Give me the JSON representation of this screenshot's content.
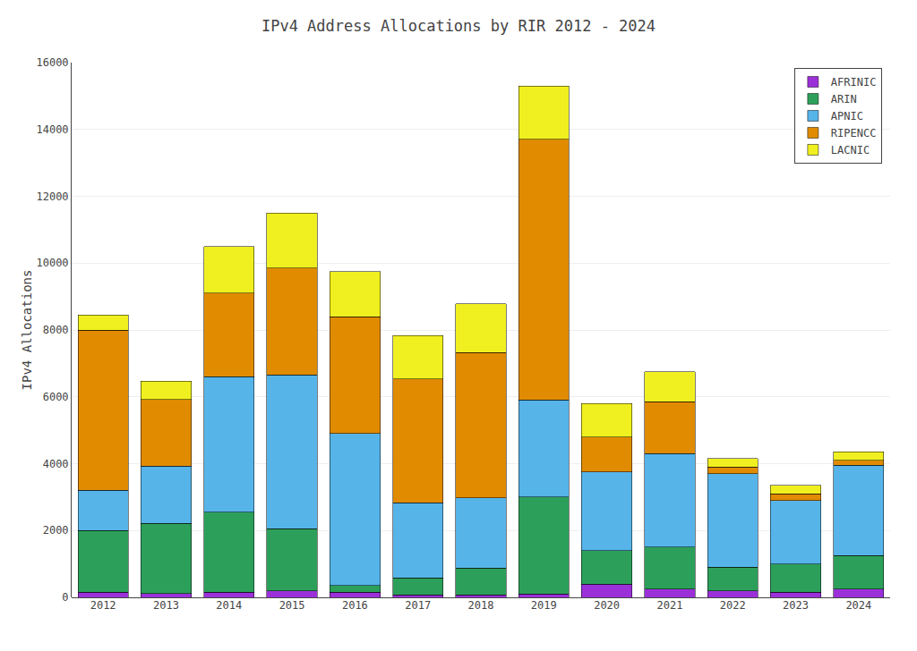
{
  "chart_data": {
    "type": "bar",
    "stacked": true,
    "title": "IPv4 Address Allocations by RIR 2012 - 2024",
    "ylabel": "IPv4 Allocations",
    "categories": [
      "2012",
      "2013",
      "2014",
      "2015",
      "2016",
      "2017",
      "2018",
      "2019",
      "2020",
      "2021",
      "2022",
      "2023",
      "2024"
    ],
    "series": [
      {
        "name": "AFRINIC",
        "color": "#9b30d9",
        "values": [
          150,
          120,
          150,
          200,
          150,
          80,
          80,
          100,
          400,
          250,
          200,
          150,
          250
        ]
      },
      {
        "name": "ARIN",
        "color": "#2ca05a",
        "values": [
          1850,
          2100,
          2400,
          1850,
          200,
          500,
          800,
          2900,
          1000,
          1250,
          700,
          850,
          1000
        ]
      },
      {
        "name": "APNIC",
        "color": "#56b4e9",
        "values": [
          1200,
          1700,
          4050,
          4600,
          4550,
          2250,
          2100,
          2900,
          2350,
          2800,
          2800,
          1900,
          2700
        ]
      },
      {
        "name": "RIPENCC",
        "color": "#e08b00",
        "values": [
          4800,
          2000,
          2500,
          3200,
          3500,
          3700,
          4350,
          7800,
          1050,
          1550,
          200,
          200,
          150
        ]
      },
      {
        "name": "LACNIC",
        "color": "#f0f020",
        "values": [
          450,
          550,
          1400,
          1650,
          1350,
          1300,
          1450,
          1600,
          1000,
          900,
          250,
          250,
          250
        ]
      }
    ],
    "ylim": [
      0,
      16000
    ],
    "yticks": [
      0,
      2000,
      4000,
      6000,
      8000,
      10000,
      12000,
      14000,
      16000
    ],
    "grid": true,
    "legend": "upper right"
  }
}
